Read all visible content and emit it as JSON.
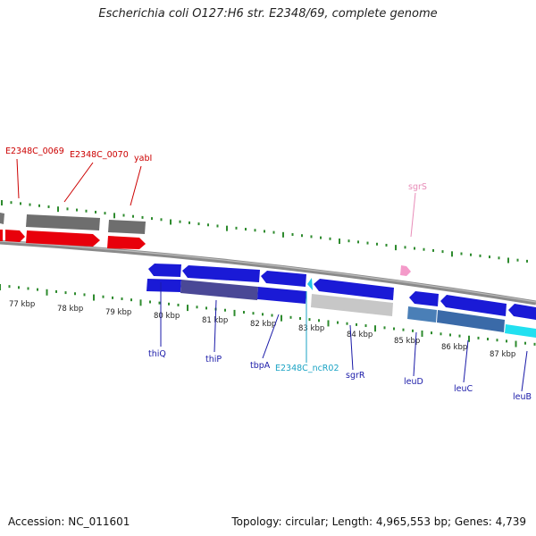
{
  "title": "Escherichia coli O127:H6 str. E2348/69, complete genome",
  "footer": {
    "accession": "Accession: NC_011601",
    "topology": "Topology: circular; Length: 4,965,553 bp; Genes: 4,739"
  },
  "colors": {
    "forward_cds": "#e8000b",
    "reverse_cds": "#1a1ad6",
    "gene_track": "#707070",
    "ncrna": "#22c4e8",
    "srna": "#f49ac9",
    "tick": "#2e8b2e",
    "label_forward": "#cc0000",
    "label_reverse": "#1a1aa8",
    "label_ncrna": "#1aa3c4",
    "label_srna": "#e88cb8"
  },
  "scale_labels": [
    "77 kbp",
    "78 kbp",
    "79 kbp",
    "80 kbp",
    "81 kbp",
    "82 kbp",
    "83 kbp",
    "84 kbp",
    "85 kbp",
    "86 kbp",
    "87 kbp"
  ],
  "gene_labels": {
    "e2348c_0069": "E2348C_0069",
    "e2348c_0070": "E2348C_0070",
    "yabi": "yabI",
    "sgrs": "sgrS",
    "thiq": "thiQ",
    "thip": "thiP",
    "tbpa": "tbpA",
    "ncr02": "E2348C_ncR02",
    "sgrr": "sgrR",
    "leud": "leuD",
    "leuc": "leuC",
    "leub": "leuB"
  }
}
